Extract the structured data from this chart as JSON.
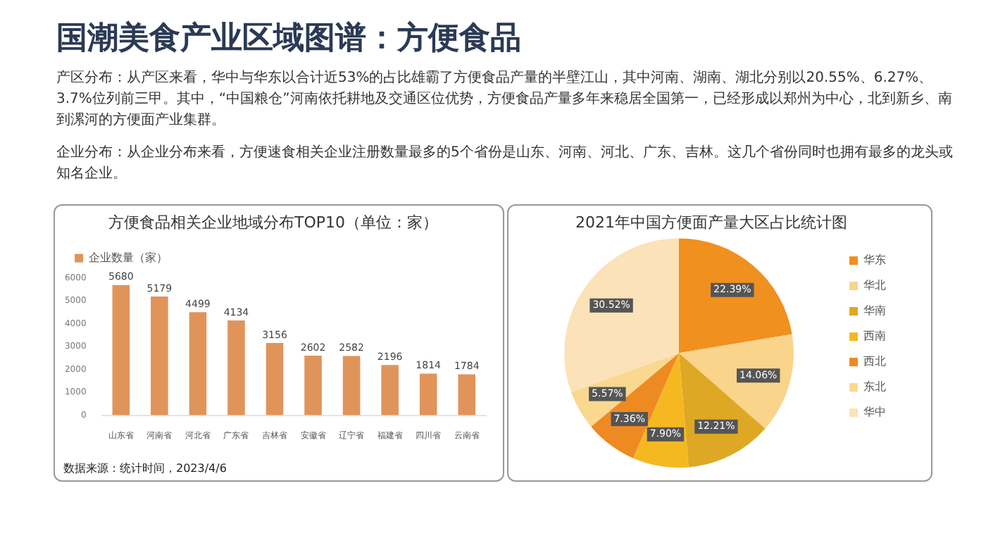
{
  "chart_data": [
    {
      "type": "other",
      "title": "国潮美食产业区域图谱：方便食品",
      "annotations": [
        "产区分布：从产区来看，华中与华东以合计近53%的占比雄霸了方便食品产量的半壁江山，其中河南、湖南、湖北分别以20.55%、6.27%、3.7%位列前三甲。其中，“中国粮仓”河南依托耕地及交通区位优势，方便食品产量多年来稳居全国第一，已经形成以郑州为中心，北到新乡、南到漯河的方便面产业集群。",
        "企业分布：从企业分布来看，方便速食相关企业注册数量最多的5个省份是山东、河南、河北、广东、吉林。这几个省份同时也拥有最多的龙头或知名企业。"
      ]
    },
    {
      "type": "bar",
      "title": "方便食品相关企业地域分布TOP10（单位：家）",
      "categories": [
        "山东省",
        "河南省",
        "河北省",
        "广东省",
        "吉林省",
        "安徽省",
        "辽宁省",
        "福建省",
        "四川省",
        "云南省"
      ],
      "series": [
        {
          "name": "企业数量（家）",
          "color": "#e0945a",
          "values": [
            5680,
            5179,
            4499,
            4134,
            3156,
            2602,
            2582,
            2196,
            1814,
            1784
          ]
        }
      ],
      "ylim": [
        0,
        6000
      ],
      "yticks": [
        0,
        1000,
        2000,
        3000,
        4000,
        5000,
        6000
      ],
      "grid": false,
      "legend": "top left",
      "data_labels": true,
      "annotations": [
        "数据来源：统计时间，2023/4/6"
      ]
    },
    {
      "type": "pie",
      "title": "2021年中国方便面产量大区占比统计图",
      "categories": [
        "华东",
        "华北",
        "华南",
        "西南",
        "西北",
        "东北",
        "华中"
      ],
      "values": [
        22.39,
        14.06,
        12.21,
        7.9,
        7.36,
        5.57,
        30.52
      ],
      "colors": [
        "#f0901e",
        "#fad48a",
        "#dea824",
        "#f5b820",
        "#ee8a22",
        "#fbd890",
        "#fbe2b8"
      ],
      "value_labels": [
        "22.39%",
        "14.06%",
        "12.21%",
        "7.90%",
        "7.36%",
        "5.57%",
        "30.52%"
      ],
      "legend": "right"
    }
  ]
}
